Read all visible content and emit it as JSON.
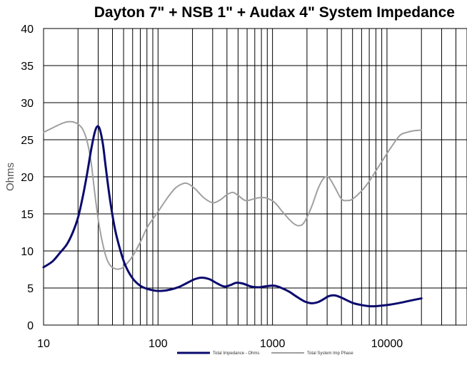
{
  "chart_data": {
    "type": "line",
    "title": "Dayton 7\" + NSB 1\" + Audax 4\"  System Impedance",
    "ylabel": "Ohms",
    "xlabel": "",
    "xscale": "log",
    "xlim": [
      10,
      50000
    ],
    "ylim": [
      0,
      40
    ],
    "grid": true,
    "legend_position": "bottom",
    "y_ticks": [
      "0",
      "5",
      "10",
      "15",
      "20",
      "25",
      "30",
      "35",
      "40"
    ],
    "x_ticks": [
      "10",
      "100",
      "1000",
      "10000"
    ],
    "series": [
      {
        "name": "Total Impedance - Ohms",
        "color": "#0a0a6e",
        "points": [
          [
            10,
            7.8
          ],
          [
            12,
            8.6
          ],
          [
            14,
            9.8
          ],
          [
            16,
            10.9
          ],
          [
            18,
            12.5
          ],
          [
            20,
            14.5
          ],
          [
            22,
            17.3
          ],
          [
            24,
            20.4
          ],
          [
            26,
            23.6
          ],
          [
            28,
            26.0
          ],
          [
            29.5,
            26.8
          ],
          [
            31,
            26.4
          ],
          [
            33,
            24.4
          ],
          [
            35,
            21.2
          ],
          [
            38,
            17.0
          ],
          [
            42,
            13.0
          ],
          [
            47,
            10.0
          ],
          [
            52,
            8.0
          ],
          [
            60,
            6.3
          ],
          [
            70,
            5.3
          ],
          [
            80,
            4.9
          ],
          [
            90,
            4.7
          ],
          [
            100,
            4.6
          ],
          [
            120,
            4.7
          ],
          [
            150,
            5.1
          ],
          [
            180,
            5.7
          ],
          [
            210,
            6.2
          ],
          [
            240,
            6.4
          ],
          [
            280,
            6.2
          ],
          [
            330,
            5.6
          ],
          [
            380,
            5.2
          ],
          [
            430,
            5.4
          ],
          [
            480,
            5.7
          ],
          [
            550,
            5.6
          ],
          [
            650,
            5.2
          ],
          [
            750,
            5.1
          ],
          [
            850,
            5.2
          ],
          [
            950,
            5.3
          ],
          [
            1050,
            5.3
          ],
          [
            1200,
            5.0
          ],
          [
            1400,
            4.5
          ],
          [
            1600,
            3.9
          ],
          [
            1900,
            3.2
          ],
          [
            2200,
            2.95
          ],
          [
            2500,
            3.1
          ],
          [
            2800,
            3.5
          ],
          [
            3100,
            3.9
          ],
          [
            3500,
            4.0
          ],
          [
            4000,
            3.7
          ],
          [
            5000,
            3.0
          ],
          [
            6000,
            2.7
          ],
          [
            7000,
            2.55
          ],
          [
            8000,
            2.55
          ],
          [
            10000,
            2.7
          ],
          [
            13000,
            3.0
          ],
          [
            16000,
            3.3
          ],
          [
            20000,
            3.6
          ]
        ]
      },
      {
        "name": "Total System Imp Phase",
        "color": "#a0a0a0",
        "points": [
          [
            10,
            26.0
          ],
          [
            12,
            26.6
          ],
          [
            14,
            27.1
          ],
          [
            16,
            27.4
          ],
          [
            18,
            27.4
          ],
          [
            20,
            27.1
          ],
          [
            22,
            26.4
          ],
          [
            24,
            24.8
          ],
          [
            26,
            22.0
          ],
          [
            28,
            17.8
          ],
          [
            30,
            14.3
          ],
          [
            32,
            11.8
          ],
          [
            35,
            9.3
          ],
          [
            38,
            8.1
          ],
          [
            42,
            7.6
          ],
          [
            47,
            7.6
          ],
          [
            52,
            8.1
          ],
          [
            60,
            9.3
          ],
          [
            70,
            11.2
          ],
          [
            80,
            13.1
          ],
          [
            90,
            14.3
          ],
          [
            100,
            15.3
          ],
          [
            120,
            17.1
          ],
          [
            140,
            18.4
          ],
          [
            160,
            19.0
          ],
          [
            180,
            19.1
          ],
          [
            210,
            18.4
          ],
          [
            250,
            17.2
          ],
          [
            300,
            16.5
          ],
          [
            350,
            16.9
          ],
          [
            400,
            17.6
          ],
          [
            450,
            17.9
          ],
          [
            500,
            17.5
          ],
          [
            580,
            16.8
          ],
          [
            680,
            17.0
          ],
          [
            780,
            17.2
          ],
          [
            900,
            17.1
          ],
          [
            1050,
            16.5
          ],
          [
            1250,
            15.1
          ],
          [
            1500,
            13.8
          ],
          [
            1700,
            13.4
          ],
          [
            1900,
            13.9
          ],
          [
            2200,
            16.0
          ],
          [
            2500,
            18.4
          ],
          [
            2800,
            19.8
          ],
          [
            3100,
            19.9
          ],
          [
            3500,
            18.6
          ],
          [
            4000,
            17.0
          ],
          [
            4500,
            16.8
          ],
          [
            5000,
            17.0
          ],
          [
            6000,
            18.1
          ],
          [
            7000,
            19.4
          ],
          [
            8000,
            20.8
          ],
          [
            9500,
            22.6
          ],
          [
            11000,
            24.1
          ],
          [
            13000,
            25.6
          ],
          [
            15000,
            26.0
          ],
          [
            17000,
            26.2
          ],
          [
            20000,
            26.3
          ]
        ]
      }
    ]
  }
}
